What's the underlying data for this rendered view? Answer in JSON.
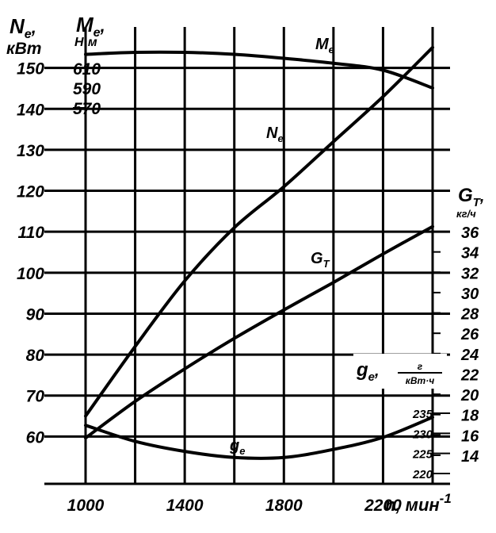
{
  "chart_data": {
    "type": "line",
    "x_axis": {
      "label": "n, мин",
      "label_superscript": "-1",
      "range": [
        1000,
        2400
      ],
      "ticks": [
        "1000",
        "1400",
        "1800",
        "2200"
      ]
    },
    "left_axis_power": {
      "label_main": "N",
      "label_sub": "e",
      "label_after": ",",
      "unit": "кВт",
      "range": [
        50,
        160
      ],
      "ticks": [
        "60",
        "70",
        "80",
        "90",
        "100",
        "110",
        "120",
        "130",
        "140",
        "150"
      ]
    },
    "left_axis_torque": {
      "label_main": "M",
      "label_sub": "e",
      "label_after": ",",
      "unit": "Н·м",
      "ticks": [
        "570",
        "590",
        "610"
      ]
    },
    "right_axis_fuel": {
      "label_main": "G",
      "label_sub": "T",
      "label_after": ",",
      "unit": "кг/ч",
      "ticks": [
        "14",
        "16",
        "18",
        "20",
        "22",
        "24",
        "26",
        "28",
        "30",
        "32",
        "34",
        "36"
      ]
    },
    "right_axis_specific": {
      "label_main": "g",
      "label_sub": "e",
      "label_after": ",",
      "unit_num": "г",
      "unit_den": "кВт·ч",
      "ticks": [
        "220",
        "225",
        "230",
        "235"
      ]
    },
    "series": [
      {
        "name": "Ne",
        "axis": "power",
        "x": [
          1000,
          1200,
          1400,
          1600,
          1800,
          2000,
          2200,
          2400
        ],
        "y": [
          65,
          82,
          98,
          111,
          121,
          132,
          143,
          155
        ]
      },
      {
        "name": "Me",
        "axis": "torque",
        "x": [
          1000,
          1200,
          1400,
          1600,
          1800,
          2000,
          2200,
          2400
        ],
        "y": [
          624,
          626,
          626,
          624,
          620,
          615,
          608,
          590
        ]
      },
      {
        "name": "GT",
        "axis": "fuel",
        "x": [
          1000,
          1200,
          1400,
          1600,
          1800,
          2000,
          2200,
          2400
        ],
        "y": [
          15.7,
          19.3,
          22.5,
          25.5,
          28.3,
          31.0,
          33.8,
          36.5
        ]
      },
      {
        "name": "ge",
        "axis": "specific",
        "x": [
          1000,
          1200,
          1400,
          1600,
          1800,
          2000,
          2200,
          2400
        ],
        "y": [
          232,
          228,
          225.5,
          224,
          224,
          226,
          229,
          234
        ]
      }
    ],
    "curve_labels": {
      "Me": {
        "main": "M",
        "sub": "e"
      },
      "Ne": {
        "main": "N",
        "sub": "e"
      },
      "GT": {
        "main": "G",
        "sub": "T"
      },
      "ge": {
        "main": "g",
        "sub": "e"
      }
    },
    "grid": true
  }
}
